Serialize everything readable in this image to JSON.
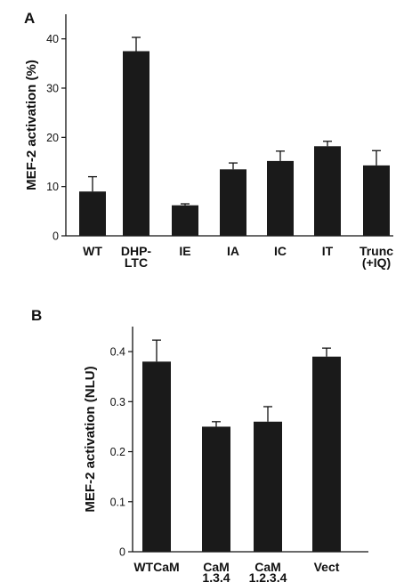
{
  "chart_data": [
    {
      "type": "bar",
      "panel_label": "A",
      "ylabel": "MEF-2 activation (%)",
      "categories": [
        [
          "WT"
        ],
        [
          "DHP-",
          "LTC"
        ],
        [
          "IE"
        ],
        [
          "IA"
        ],
        [
          "IC"
        ],
        [
          "IT"
        ],
        [
          "Trunc",
          "(+IQ)"
        ]
      ],
      "values": [
        9,
        37.5,
        6.2,
        13.5,
        15.2,
        18.2,
        14.3
      ],
      "errors": [
        3,
        2.8,
        0.3,
        1.3,
        2,
        1,
        3
      ],
      "ylim": [
        0,
        45
      ],
      "yticks": [
        0,
        10,
        20,
        30,
        40
      ],
      "ytick_labels": [
        "0",
        "10",
        "20",
        "30",
        "40"
      ],
      "bar_color": "#1a1a1a"
    },
    {
      "type": "bar",
      "panel_label": "B",
      "ylabel": "MEF-2 activation (NLU)",
      "categories": [
        [
          "WTCaM"
        ],
        [
          "CaM",
          "1,3,4"
        ],
        [
          "CaM",
          "1,2,3,4"
        ],
        [
          "Vect"
        ]
      ],
      "values": [
        0.38,
        0.25,
        0.26,
        0.39
      ],
      "errors": [
        0.043,
        0.01,
        0.03,
        0.017
      ],
      "ylim": [
        0,
        0.45
      ],
      "yticks": [
        0,
        0.1,
        0.2,
        0.3,
        0.4
      ],
      "ytick_labels": [
        "0",
        "0.1",
        "0.2",
        "0.3",
        "0.4"
      ],
      "bar_color": "#1a1a1a"
    }
  ]
}
